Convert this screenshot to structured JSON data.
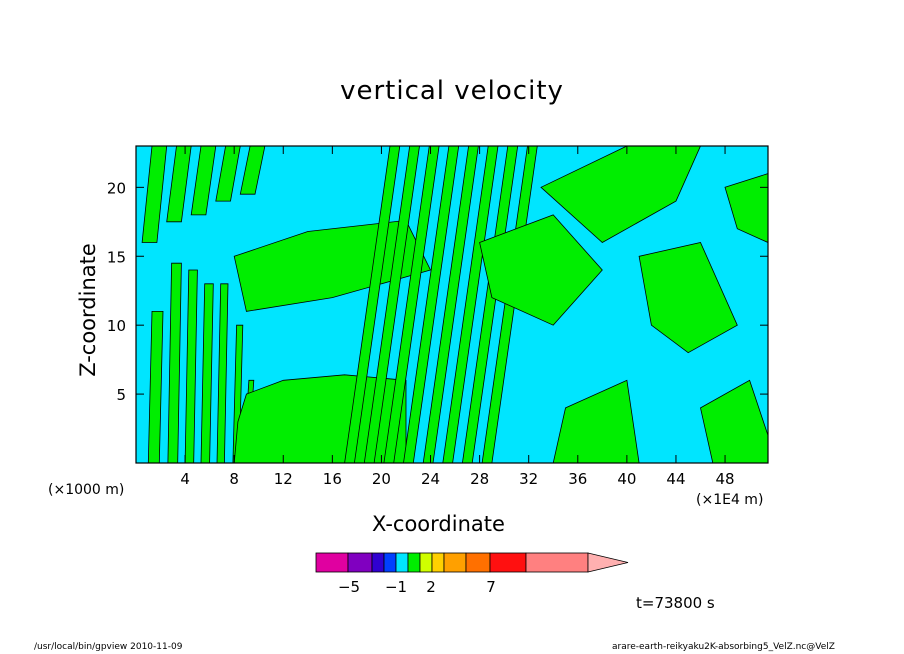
{
  "chart_data": {
    "type": "heatmap",
    "title": "vertical velocity",
    "xlabel": "X-coordinate",
    "ylabel": "Z-coordinate",
    "x_unit_label": "(×1000 m)",
    "x_scale_label": "(×1E4 m)",
    "xlim": [
      0,
      51.5
    ],
    "ylim": [
      0,
      23
    ],
    "x_ticks": [
      4,
      8,
      12,
      16,
      20,
      24,
      28,
      32,
      36,
      40,
      44,
      48
    ],
    "y_ticks": [
      5,
      10,
      15,
      20
    ],
    "levels_shown": [
      "cyan",
      "green"
    ],
    "series": [
      {
        "name": "negative (cyan)",
        "color": "#00e5ff"
      },
      {
        "name": "positive (green)",
        "color": "#00ee00"
      }
    ],
    "colorbar": {
      "labels": [
        "-5",
        "-1",
        "2",
        "7"
      ],
      "colors": [
        "#e000a0",
        "#8000c0",
        "#3000d0",
        "#0040ff",
        "#00e5ff",
        "#00ee00",
        "#d0ff00",
        "#ffd000",
        "#ffa000",
        "#ff7000",
        "#ff1010",
        "#ff8080"
      ],
      "extend_color": "#ffb0b0"
    },
    "time_label": "t=73800 s"
  },
  "footer": {
    "left": "/usr/local/bin/gpview  2010-11-09",
    "right": "arare-earth-reikyaku2K-absorbing5_VelZ.nc@VelZ"
  }
}
